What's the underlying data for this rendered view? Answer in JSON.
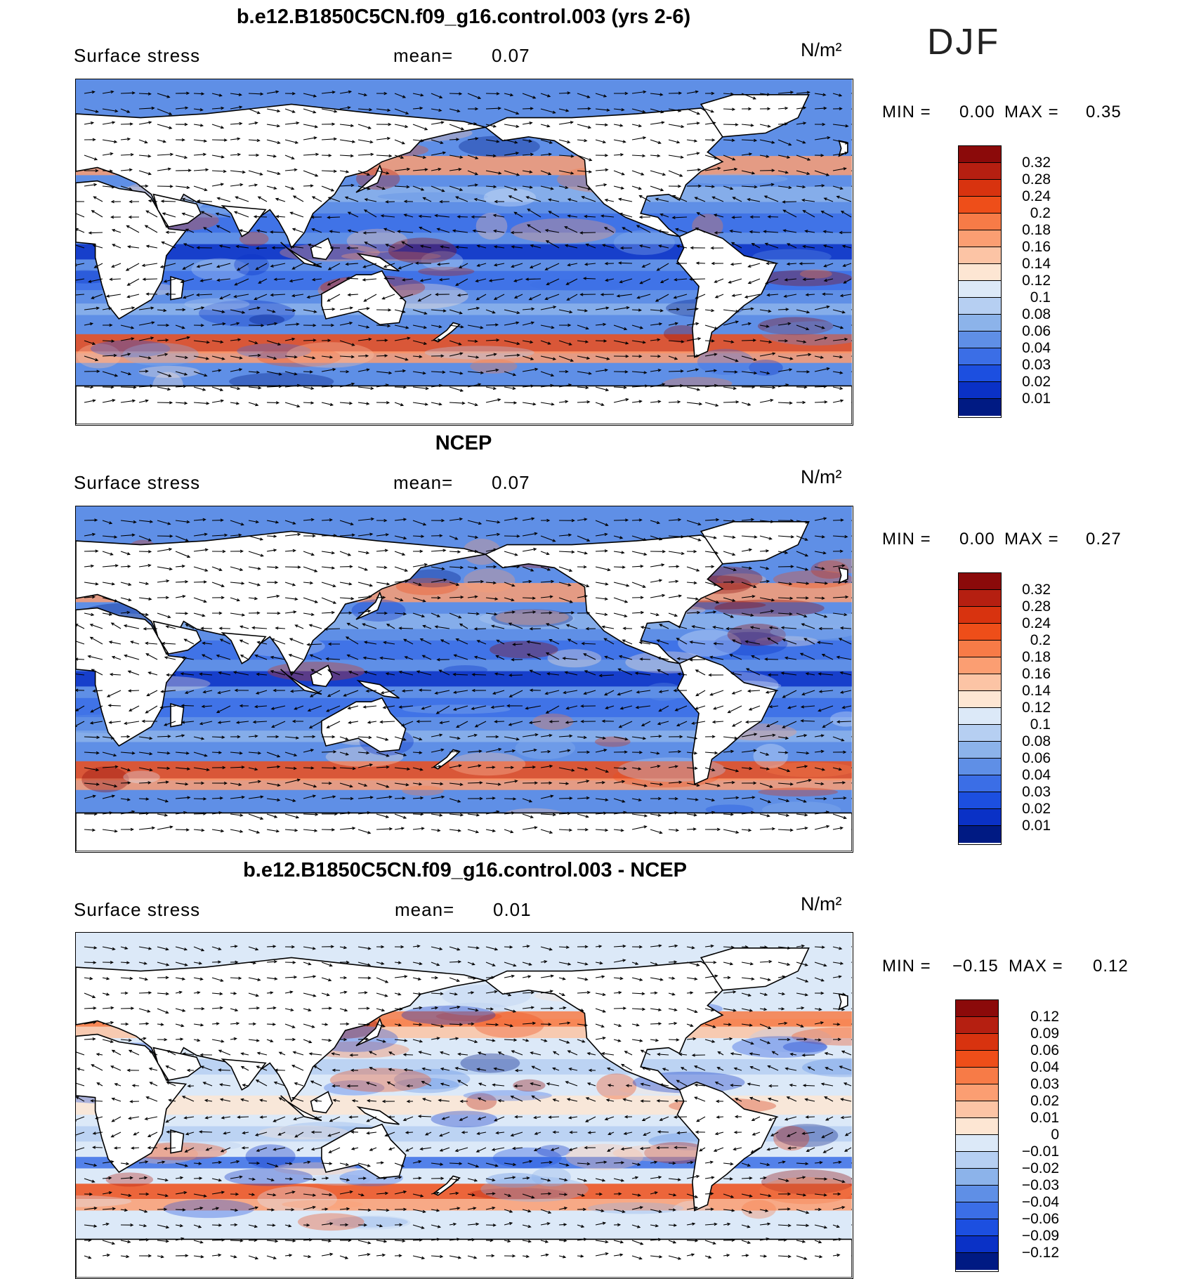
{
  "season": "DJF",
  "panels": [
    {
      "id": "model",
      "title": "b.e12.B1850C5CN.f09_g16.control.003 (yrs 2-6)",
      "variable": "Surface stress",
      "mean_label": "mean=",
      "mean_value": "0.07",
      "units": "N/m²",
      "min_label": "MIN =",
      "min_value": "0.00",
      "max_label": "MAX =",
      "max_value": "0.35",
      "colorbar_labels": [
        "0.32",
        "0.28",
        "0.24",
        "0.2",
        "0.18",
        "0.16",
        "0.14",
        "0.12",
        "0.1",
        "0.08",
        "0.06",
        "0.04",
        "0.03",
        "0.02",
        "0.01"
      ],
      "colorbar_colors": [
        "#8b0a0a",
        "#b51f11",
        "#d8330f",
        "#ee4e19",
        "#f77b47",
        "#fb9e72",
        "#fcc4a5",
        "#fde6d3",
        "#dce9f8",
        "#b6cff2",
        "#8cb3ea",
        "#5f8fe6",
        "#3b6ee6",
        "#1c4fe0",
        "#0a31c6",
        "#001a83"
      ]
    },
    {
      "id": "obs",
      "title": "NCEP",
      "variable": "Surface stress",
      "mean_label": "mean=",
      "mean_value": "0.07",
      "units": "N/m²",
      "min_label": "MIN =",
      "min_value": "0.00",
      "max_label": "MAX =",
      "max_value": "0.27",
      "colorbar_labels": [
        "0.32",
        "0.28",
        "0.24",
        "0.2",
        "0.18",
        "0.16",
        "0.14",
        "0.12",
        "0.1",
        "0.08",
        "0.06",
        "0.04",
        "0.03",
        "0.02",
        "0.01"
      ],
      "colorbar_colors": [
        "#8b0a0a",
        "#b51f11",
        "#d8330f",
        "#ee4e19",
        "#f77b47",
        "#fb9e72",
        "#fcc4a5",
        "#fde6d3",
        "#dce9f8",
        "#b6cff2",
        "#8cb3ea",
        "#5f8fe6",
        "#3b6ee6",
        "#1c4fe0",
        "#0a31c6",
        "#001a83"
      ]
    },
    {
      "id": "diff",
      "title": "b.e12.B1850C5CN.f09_g16.control.003 - NCEP",
      "variable": "Surface stress",
      "mean_label": "mean=",
      "mean_value": "0.01",
      "units": "N/m²",
      "min_label": "MIN =",
      "min_value": "−0.15",
      "max_label": "MAX =",
      "max_value": "0.12",
      "colorbar_labels": [
        "0.12",
        "0.09",
        "0.06",
        "0.04",
        "0.03",
        "0.02",
        "0.01",
        "0",
        "−0.01",
        "−0.02",
        "−0.03",
        "−0.04",
        "−0.06",
        "−0.09",
        "−0.12"
      ],
      "colorbar_colors": [
        "#8b0a0a",
        "#b51f11",
        "#d8330f",
        "#ee4e19",
        "#f77b47",
        "#fb9e72",
        "#fcc4a5",
        "#fde6d3",
        "#dce9f8",
        "#b6cff2",
        "#8cb3ea",
        "#5f8fe6",
        "#3b6ee6",
        "#1c4fe0",
        "#0a31c6",
        "#001a83"
      ]
    }
  ]
}
